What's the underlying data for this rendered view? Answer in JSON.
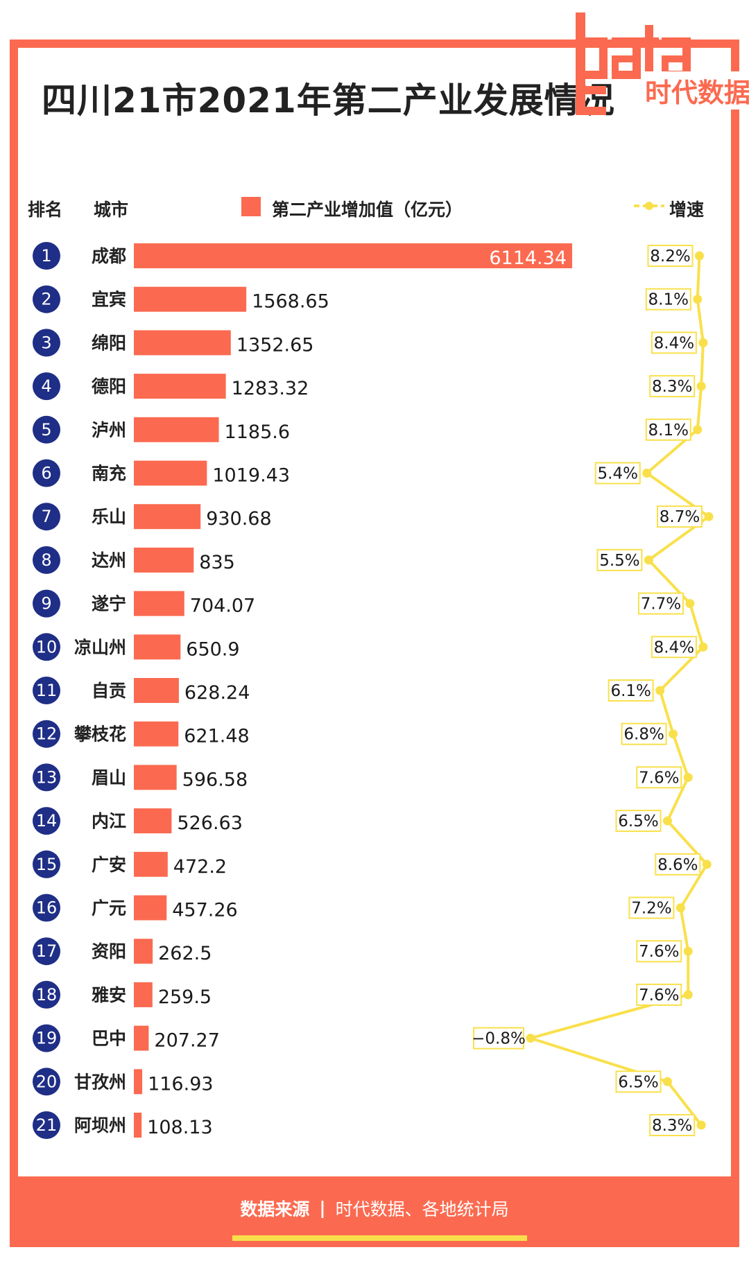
{
  "title": "四川21市2021年第二产业发展情况",
  "logo": {
    "letters": "data",
    "name": "时代数据"
  },
  "header": {
    "rank": "排名",
    "city": "城市",
    "legend_bar": "第二产业增加值（亿元）",
    "legend_line": "增速"
  },
  "colors": {
    "bar": "#fb6a50",
    "line": "#f9e04b",
    "rank_circle": "#1f2e86",
    "label_box_border": "#f9e04b"
  },
  "chart_data": {
    "type": "bar",
    "categories": [
      "成都",
      "宜宾",
      "绵阳",
      "德阳",
      "泸州",
      "南充",
      "乐山",
      "达州",
      "遂宁",
      "凉山州",
      "自贡",
      "攀枝花",
      "眉山",
      "内江",
      "广安",
      "广元",
      "资阳",
      "雅安",
      "巴中",
      "甘孜州",
      "阿坝州"
    ],
    "ranks": [
      "1",
      "2",
      "3",
      "4",
      "5",
      "6",
      "7",
      "8",
      "9",
      "10",
      "11",
      "12",
      "13",
      "14",
      "15",
      "16",
      "17",
      "18",
      "19",
      "20",
      "21"
    ],
    "series": [
      {
        "name": "第二产业增加值（亿元）",
        "values": [
          6114.34,
          1568.65,
          1352.65,
          1283.32,
          1185.6,
          1019.43,
          930.68,
          835,
          704.07,
          650.9,
          628.24,
          621.48,
          596.58,
          526.63,
          472.2,
          457.26,
          262.5,
          259.5,
          207.27,
          116.93,
          108.13
        ],
        "labels": [
          "6114.34",
          "1568.65",
          "1352.65",
          "1283.32",
          "1185.6",
          "1019.43",
          "930.68",
          "835",
          "704.07",
          "650.9",
          "628.24",
          "621.48",
          "596.58",
          "526.63",
          "472.2",
          "457.26",
          "262.5",
          "259.5",
          "207.27",
          "116.93",
          "108.13"
        ]
      },
      {
        "name": "增速",
        "values": [
          8.2,
          8.1,
          8.4,
          8.3,
          8.1,
          5.4,
          8.7,
          5.5,
          7.7,
          8.4,
          6.1,
          6.8,
          7.6,
          6.5,
          8.6,
          7.2,
          7.6,
          7.6,
          -0.8,
          6.5,
          8.3
        ],
        "labels": [
          "8.2%",
          "8.1%",
          "8.4%",
          "8.3%",
          "8.1%",
          "5.4%",
          "8.7%",
          "5.5%",
          "7.7%",
          "8.4%",
          "6.1%",
          "6.8%",
          "7.6%",
          "6.5%",
          "8.6%",
          "7.2%",
          "7.6%",
          "7.6%",
          "−0.8%",
          "6.5%",
          "8.3%"
        ]
      }
    ]
  },
  "footer": {
    "source_label": "数据来源",
    "separator": "|",
    "source": "时代数据、各地统计局"
  }
}
